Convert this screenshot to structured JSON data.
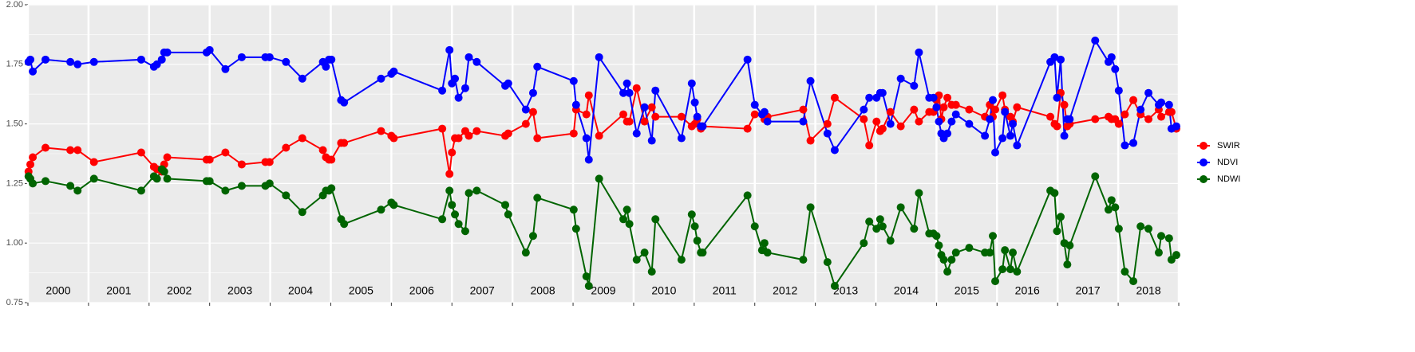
{
  "chart_data": {
    "type": "line",
    "x": [
      2000.01,
      2000.04,
      2000.08,
      2000.29,
      2000.7,
      2000.82,
      2001.09,
      2001.87,
      2002.08,
      2002.13,
      2002.21,
      2002.25,
      2002.3,
      2002.95,
      2003.0,
      2003.26,
      2003.53,
      2003.92,
      2003.99,
      2004.26,
      2004.53,
      2004.87,
      2004.92,
      2004.97,
      2005.01,
      2005.17,
      2005.22,
      2005.83,
      2006.0,
      2006.04,
      2006.84,
      2006.96,
      2007.0,
      2007.05,
      2007.11,
      2007.22,
      2007.28,
      2007.41,
      2007.88,
      2007.93,
      2008.22,
      2008.34,
      2008.41,
      2009.01,
      2009.05,
      2009.22,
      2009.26,
      2009.43,
      2009.83,
      2009.89,
      2009.93,
      2010.05,
      2010.18,
      2010.3,
      2010.36,
      2010.79,
      2010.96,
      2011.01,
      2011.05,
      2011.11,
      2011.14,
      2011.88,
      2012.0,
      2012.12,
      2012.16,
      2012.21,
      2012.8,
      2012.92,
      2013.2,
      2013.32,
      2013.8,
      2013.89,
      2014.01,
      2014.07,
      2014.11,
      2014.24,
      2014.41,
      2014.63,
      2014.71,
      2014.88,
      2014.95,
      2015.0,
      2015.04,
      2015.08,
      2015.12,
      2015.18,
      2015.25,
      2015.32,
      2015.54,
      2015.8,
      2015.88,
      2015.93,
      2015.97,
      2016.09,
      2016.13,
      2016.22,
      2016.26,
      2016.33,
      2016.88,
      2016.95,
      2016.99,
      2017.05,
      2017.11,
      2017.16,
      2017.2,
      2017.62,
      2017.84,
      2017.89,
      2017.95,
      2018.01,
      2018.11,
      2018.25,
      2018.37,
      2018.5,
      2018.67,
      2018.71,
      2018.84,
      2018.88,
      2018.96
    ],
    "series": [
      {
        "name": "SWIR",
        "color": "#ff0000",
        "values": [
          1.3,
          1.33,
          1.36,
          1.4,
          1.39,
          1.39,
          1.34,
          1.38,
          1.32,
          1.31,
          1.3,
          1.33,
          1.36,
          1.35,
          1.35,
          1.38,
          1.33,
          1.34,
          1.34,
          1.4,
          1.44,
          1.39,
          1.36,
          1.35,
          1.35,
          1.42,
          1.42,
          1.47,
          1.45,
          1.44,
          1.48,
          1.29,
          1.38,
          1.44,
          1.44,
          1.47,
          1.45,
          1.47,
          1.45,
          1.46,
          1.5,
          1.55,
          1.44,
          1.46,
          1.56,
          1.54,
          1.62,
          1.45,
          1.54,
          1.51,
          1.51,
          1.65,
          1.51,
          1.57,
          1.53,
          1.53,
          1.49,
          1.5,
          1.52,
          1.48,
          1.49,
          1.48,
          1.54,
          1.54,
          1.52,
          1.53,
          1.56,
          1.43,
          1.5,
          1.61,
          1.52,
          1.41,
          1.51,
          1.47,
          1.48,
          1.55,
          1.49,
          1.56,
          1.51,
          1.55,
          1.55,
          1.6,
          1.62,
          1.52,
          1.57,
          1.61,
          1.58,
          1.58,
          1.56,
          1.53,
          1.58,
          1.53,
          1.56,
          1.62,
          1.56,
          1.53,
          1.51,
          1.57,
          1.53,
          1.5,
          1.49,
          1.63,
          1.58,
          1.49,
          1.5,
          1.52,
          1.53,
          1.52,
          1.52,
          1.5,
          1.54,
          1.6,
          1.54,
          1.52,
          1.56,
          1.53,
          1.55,
          1.55,
          1.48
        ]
      },
      {
        "name": "NDVI",
        "color": "#0000ff",
        "values": [
          1.76,
          1.77,
          1.72,
          1.77,
          1.76,
          1.75,
          1.76,
          1.77,
          1.74,
          1.75,
          1.77,
          1.8,
          1.8,
          1.8,
          1.81,
          1.73,
          1.78,
          1.78,
          1.78,
          1.76,
          1.69,
          1.76,
          1.74,
          1.77,
          1.77,
          1.6,
          1.59,
          1.69,
          1.71,
          1.72,
          1.64,
          1.81,
          1.67,
          1.69,
          1.61,
          1.65,
          1.78,
          1.76,
          1.66,
          1.67,
          1.56,
          1.63,
          1.74,
          1.68,
          1.58,
          1.44,
          1.35,
          1.78,
          1.63,
          1.67,
          1.63,
          1.46,
          1.57,
          1.43,
          1.64,
          1.44,
          1.67,
          1.59,
          1.53,
          1.49,
          1.49,
          1.77,
          1.58,
          1.54,
          1.55,
          1.51,
          1.51,
          1.68,
          1.46,
          1.39,
          1.56,
          1.61,
          1.61,
          1.63,
          1.63,
          1.5,
          1.69,
          1.66,
          1.8,
          1.61,
          1.61,
          1.57,
          1.51,
          1.46,
          1.44,
          1.46,
          1.51,
          1.54,
          1.5,
          1.45,
          1.52,
          1.6,
          1.38,
          1.44,
          1.55,
          1.45,
          1.5,
          1.41,
          1.76,
          1.78,
          1.61,
          1.77,
          1.45,
          1.52,
          1.52,
          1.85,
          1.76,
          1.78,
          1.73,
          1.64,
          1.41,
          1.42,
          1.56,
          1.63,
          1.58,
          1.59,
          1.58,
          1.48,
          1.49
        ]
      },
      {
        "name": "NDWI",
        "color": "#006400",
        "values": [
          1.28,
          1.27,
          1.25,
          1.26,
          1.24,
          1.22,
          1.27,
          1.22,
          1.28,
          1.27,
          1.31,
          1.3,
          1.27,
          1.26,
          1.26,
          1.22,
          1.24,
          1.24,
          1.25,
          1.2,
          1.13,
          1.2,
          1.22,
          1.22,
          1.23,
          1.1,
          1.08,
          1.14,
          1.17,
          1.16,
          1.1,
          1.22,
          1.16,
          1.12,
          1.08,
          1.05,
          1.21,
          1.22,
          1.16,
          1.12,
          0.96,
          1.03,
          1.19,
          1.14,
          1.06,
          0.86,
          0.82,
          1.27,
          1.1,
          1.14,
          1.08,
          0.93,
          0.96,
          0.88,
          1.1,
          0.93,
          1.12,
          1.07,
          1.01,
          0.96,
          0.96,
          1.2,
          1.07,
          0.97,
          1.0,
          0.96,
          0.93,
          1.15,
          0.92,
          0.82,
          1.0,
          1.09,
          1.06,
          1.1,
          1.07,
          1.01,
          1.15,
          1.06,
          1.21,
          1.04,
          1.04,
          1.03,
          0.99,
          0.95,
          0.93,
          0.88,
          0.93,
          0.96,
          0.98,
          0.96,
          0.96,
          1.03,
          0.84,
          0.89,
          0.97,
          0.89,
          0.96,
          0.88,
          1.22,
          1.21,
          1.05,
          1.11,
          1.0,
          0.91,
          0.99,
          1.28,
          1.14,
          1.18,
          1.15,
          1.06,
          0.88,
          0.84,
          1.07,
          1.06,
          0.96,
          1.03,
          1.02,
          0.93,
          0.95
        ]
      }
    ],
    "xlim": [
      2000,
      2019
    ],
    "xticks": [
      2000,
      2001,
      2002,
      2003,
      2004,
      2005,
      2006,
      2007,
      2008,
      2009,
      2010,
      2011,
      2012,
      2013,
      2014,
      2015,
      2016,
      2017,
      2018,
      2019
    ],
    "year_labels": [
      "2000",
      "2001",
      "2002",
      "2003",
      "2004",
      "2005",
      "2006",
      "2007",
      "2008",
      "2009",
      "2010",
      "2011",
      "2012",
      "2013",
      "2014",
      "2015",
      "2016",
      "2017",
      "2018"
    ],
    "ylim": [
      0.75,
      2.0
    ],
    "yticks": [
      0.75,
      {
        "value": 1.0,
        "label": "1.00"
      },
      1.25,
      {
        "value": 1.5,
        "label": "1.50"
      },
      1.75,
      {
        "value": 2.0,
        "label": "2.00"
      }
    ],
    "y_minor_gridlines": [
      0.875,
      1.125,
      1.375,
      1.625,
      1.875
    ],
    "grid": true,
    "legend_position": "right"
  }
}
